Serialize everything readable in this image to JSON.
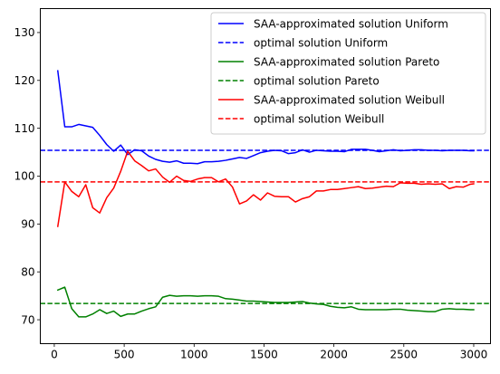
{
  "chart_data": {
    "type": "line",
    "title": "",
    "xlabel": "",
    "ylabel": "",
    "xlim": [
      -100,
      3120
    ],
    "ylim": [
      65,
      135
    ],
    "xticks": [
      0,
      500,
      1000,
      1500,
      2000,
      2500,
      3000
    ],
    "yticks": [
      70,
      80,
      90,
      100,
      110,
      120,
      130
    ],
    "xtick_labels": [
      "0",
      "500",
      "1000",
      "1500",
      "2000",
      "2500",
      "3000"
    ],
    "ytick_labels": [
      "70",
      "80",
      "90",
      "100",
      "110",
      "120",
      "130"
    ],
    "grid": false,
    "legend_position": "top-right",
    "x": [
      25,
      75,
      125,
      175,
      225,
      275,
      325,
      375,
      425,
      475,
      525,
      575,
      625,
      675,
      725,
      775,
      825,
      875,
      925,
      975,
      1025,
      1075,
      1125,
      1175,
      1225,
      1275,
      1325,
      1375,
      1425,
      1475,
      1525,
      1575,
      1625,
      1675,
      1725,
      1775,
      1825,
      1875,
      1925,
      1975,
      2025,
      2075,
      2125,
      2175,
      2225,
      2275,
      2325,
      2375,
      2425,
      2475,
      2525,
      2575,
      2625,
      2675,
      2725,
      2775,
      2825,
      2875,
      2925,
      2975,
      3000
    ],
    "series": [
      {
        "name": "SAA-approximated solution Uniform",
        "color": "#0000ff",
        "style": "solid",
        "values": [
          122.0,
          110.3,
          110.3,
          110.8,
          110.5,
          110.2,
          108.5,
          106.6,
          105.2,
          106.5,
          104.5,
          105.5,
          105.3,
          104.2,
          103.5,
          103.1,
          102.9,
          103.2,
          102.7,
          102.7,
          102.6,
          103.0,
          103.0,
          103.1,
          103.3,
          103.6,
          103.9,
          103.7,
          104.3,
          104.9,
          105.2,
          105.4,
          105.3,
          104.7,
          104.9,
          105.5,
          105.0,
          105.4,
          105.3,
          105.2,
          105.2,
          105.1,
          105.6,
          105.6,
          105.6,
          105.4,
          105.1,
          105.3,
          105.5,
          105.3,
          105.4,
          105.5,
          105.5,
          105.4,
          105.4,
          105.3,
          105.4,
          105.4,
          105.4,
          105.3,
          105.3
        ]
      },
      {
        "name": "optimal solution Uniform",
        "color": "#0000ff",
        "style": "dashed",
        "constant": 105.4
      },
      {
        "name": "SAA-approximated solution Pareto",
        "color": "#008000",
        "style": "solid",
        "values": [
          76.2,
          76.8,
          72.3,
          70.6,
          70.6,
          71.2,
          72.1,
          71.3,
          71.8,
          70.7,
          71.2,
          71.2,
          71.8,
          72.3,
          72.7,
          74.7,
          75.1,
          74.9,
          75.0,
          75.0,
          74.9,
          75.0,
          75.0,
          74.9,
          74.4,
          74.3,
          74.1,
          73.9,
          73.9,
          73.8,
          73.7,
          73.6,
          73.6,
          73.6,
          73.7,
          73.8,
          73.5,
          73.3,
          73.2,
          72.8,
          72.6,
          72.5,
          72.7,
          72.2,
          72.1,
          72.1,
          72.1,
          72.1,
          72.2,
          72.2,
          72.0,
          71.9,
          71.8,
          71.7,
          71.7,
          72.2,
          72.3,
          72.2,
          72.2,
          72.1,
          72.1
        ]
      },
      {
        "name": "optimal solution Pareto",
        "color": "#008000",
        "style": "dashed",
        "constant": 73.4
      },
      {
        "name": "SAA-approximated solution Weibull",
        "color": "#ff0000",
        "style": "solid",
        "values": [
          89.5,
          98.8,
          96.8,
          95.7,
          98.2,
          93.4,
          92.3,
          95.5,
          97.5,
          101.0,
          105.2,
          103.2,
          102.2,
          101.1,
          101.5,
          99.8,
          98.7,
          100.0,
          99.1,
          98.9,
          99.4,
          99.7,
          99.7,
          98.8,
          99.4,
          97.7,
          94.2,
          94.8,
          96.1,
          95.0,
          96.5,
          95.8,
          95.7,
          95.7,
          94.6,
          95.3,
          95.7,
          96.9,
          96.9,
          97.2,
          97.2,
          97.4,
          97.6,
          97.8,
          97.4,
          97.5,
          97.7,
          97.9,
          97.8,
          98.6,
          98.5,
          98.5,
          98.3,
          98.4,
          98.3,
          98.4,
          97.4,
          97.8,
          97.7,
          98.3,
          98.4
        ]
      },
      {
        "name": "optimal solution Weibull",
        "color": "#ff0000",
        "style": "dashed",
        "constant": 98.8
      }
    ]
  }
}
